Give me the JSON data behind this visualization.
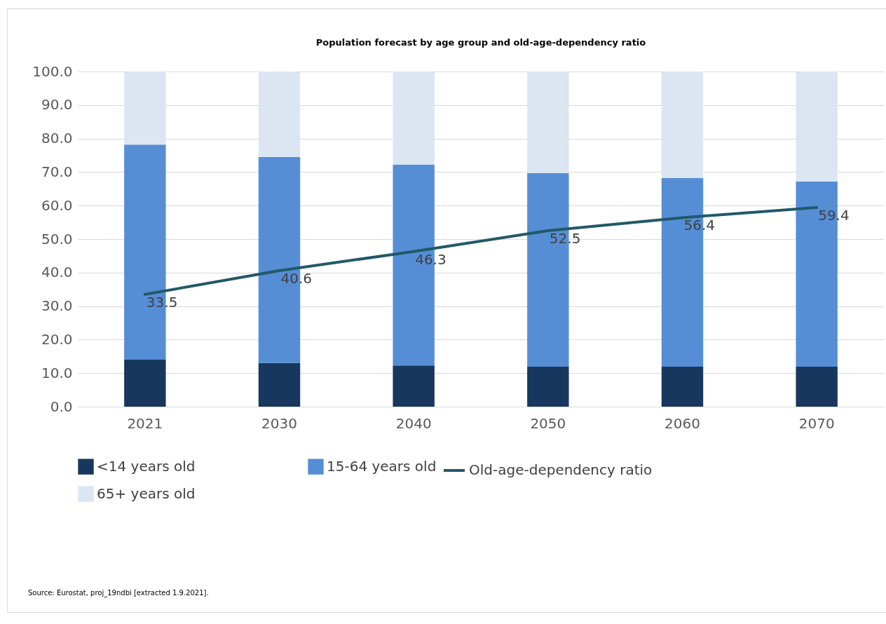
{
  "chart_data": {
    "type": "bar",
    "title": "Population forecast by age group and old-age-dependency ratio",
    "categories": [
      "2021",
      "2030",
      "2040",
      "2050",
      "2060",
      "2070"
    ],
    "stacked": true,
    "series": [
      {
        "name": "<14 years old",
        "color": "#17375e",
        "values": [
          14.0,
          13.0,
          12.3,
          11.9,
          11.9,
          11.9
        ]
      },
      {
        "name": "15-64 years old",
        "color": "#558ed5",
        "values": [
          64.2,
          61.5,
          59.9,
          57.8,
          56.3,
          55.3
        ]
      },
      {
        "name": "65+ years old",
        "color": "#dce6f2",
        "values": [
          21.8,
          25.5,
          27.8,
          30.3,
          31.8,
          32.8
        ]
      },
      {
        "name": "Old-age-dependency ratio",
        "type": "line",
        "color": "#215968",
        "values": [
          33.5,
          40.6,
          46.3,
          52.5,
          56.4,
          59.4
        ],
        "value_labels": [
          "33.5",
          "40.6",
          "46.3",
          "52.5",
          "56.4",
          "59.4"
        ]
      }
    ],
    "ylim": [
      0,
      100
    ],
    "yticks": [
      {
        "value": 0,
        "label": "0.0"
      },
      {
        "value": 10,
        "label": "10.0"
      },
      {
        "value": 20,
        "label": "20.0"
      },
      {
        "value": 30,
        "label": "30.0"
      },
      {
        "value": 40,
        "label": "40.0"
      },
      {
        "value": 50,
        "label": "50.0"
      },
      {
        "value": 60,
        "label": "60.0"
      },
      {
        "value": 70,
        "label": "70.0"
      },
      {
        "value": 80,
        "label": "80.0"
      },
      {
        "value": 90,
        "label": "90.0"
      },
      {
        "value": 100,
        "label": "100.0"
      }
    ],
    "grid": "y",
    "legend": "bottom",
    "annotations": [
      "Source: Eurostat, proj_19ndbi [extracted 1.9.2021]."
    ]
  }
}
